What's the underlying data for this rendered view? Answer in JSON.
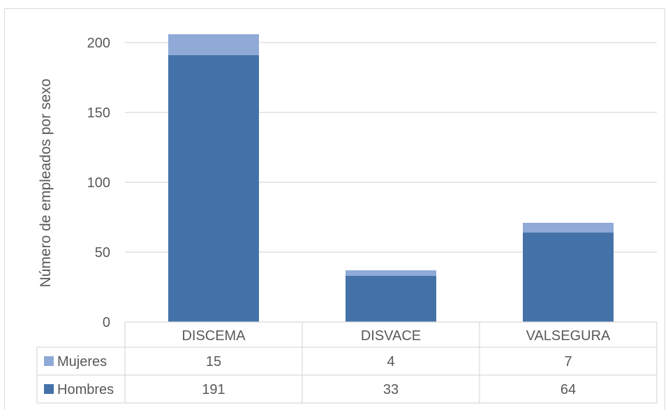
{
  "chart_data": {
    "type": "bar",
    "stacked": true,
    "categories": [
      "DISCEMA",
      "DISVACE",
      "VALSEGURA"
    ],
    "series": [
      {
        "name": "Hombres",
        "values": [
          191,
          33,
          64
        ],
        "color": "#4472a8"
      },
      {
        "name": "Mujeres",
        "values": [
          15,
          4,
          7
        ],
        "color": "#8faad6"
      }
    ],
    "title": "",
    "xlabel": "",
    "ylabel": "Número de empleados por sexo",
    "ylim": [
      0,
      200
    ],
    "yticks": [
      0,
      50,
      100,
      150,
      200
    ],
    "grid": true,
    "legend": "data-table",
    "data_table_row_order": [
      "Mujeres",
      "Hombres"
    ]
  }
}
